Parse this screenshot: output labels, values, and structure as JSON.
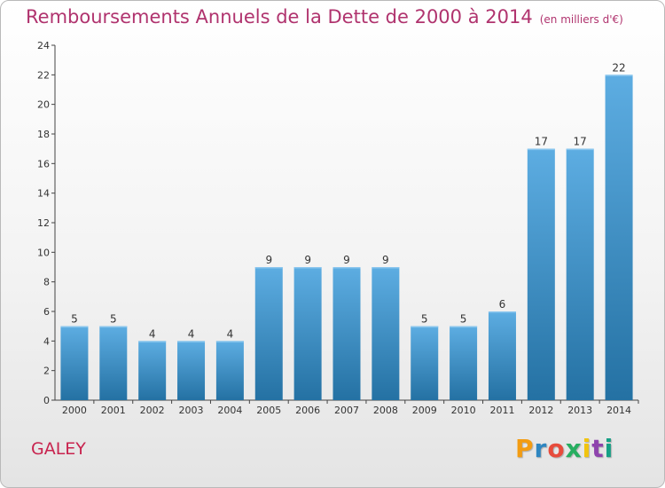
{
  "title": "Remboursements Annuels de la Dette de 2000 à 2014",
  "subtitle": "(en milliers d'€)",
  "commune": "GALEY",
  "logo": {
    "text": "Proxiti",
    "letters": [
      "P",
      "r",
      "o",
      "x",
      "i",
      "t",
      "i"
    ],
    "colors": [
      "#f39c12",
      "#2e86c1",
      "#e74c3c",
      "#27ae60",
      "#f1c40f",
      "#8e44ad",
      "#16a085"
    ]
  },
  "colors": {
    "bar_top": "#5dade2",
    "bar_bottom": "#2471a3",
    "title": "#b0336e"
  },
  "chart_data": {
    "type": "bar",
    "title": "Remboursements Annuels de la Dette de 2000 à 2014",
    "categories": [
      "2000",
      "2001",
      "2002",
      "2003",
      "2004",
      "2005",
      "2006",
      "2007",
      "2008",
      "2009",
      "2010",
      "2011",
      "2012",
      "2013",
      "2014"
    ],
    "values": [
      5,
      5,
      4,
      4,
      4,
      9,
      9,
      9,
      9,
      5,
      5,
      6,
      17,
      17,
      22
    ],
    "ylim": [
      0,
      24
    ],
    "yticks": [
      0,
      2,
      4,
      6,
      8,
      10,
      12,
      14,
      16,
      18,
      20,
      22,
      24
    ],
    "xlabel": "",
    "ylabel": "",
    "grid": false
  }
}
